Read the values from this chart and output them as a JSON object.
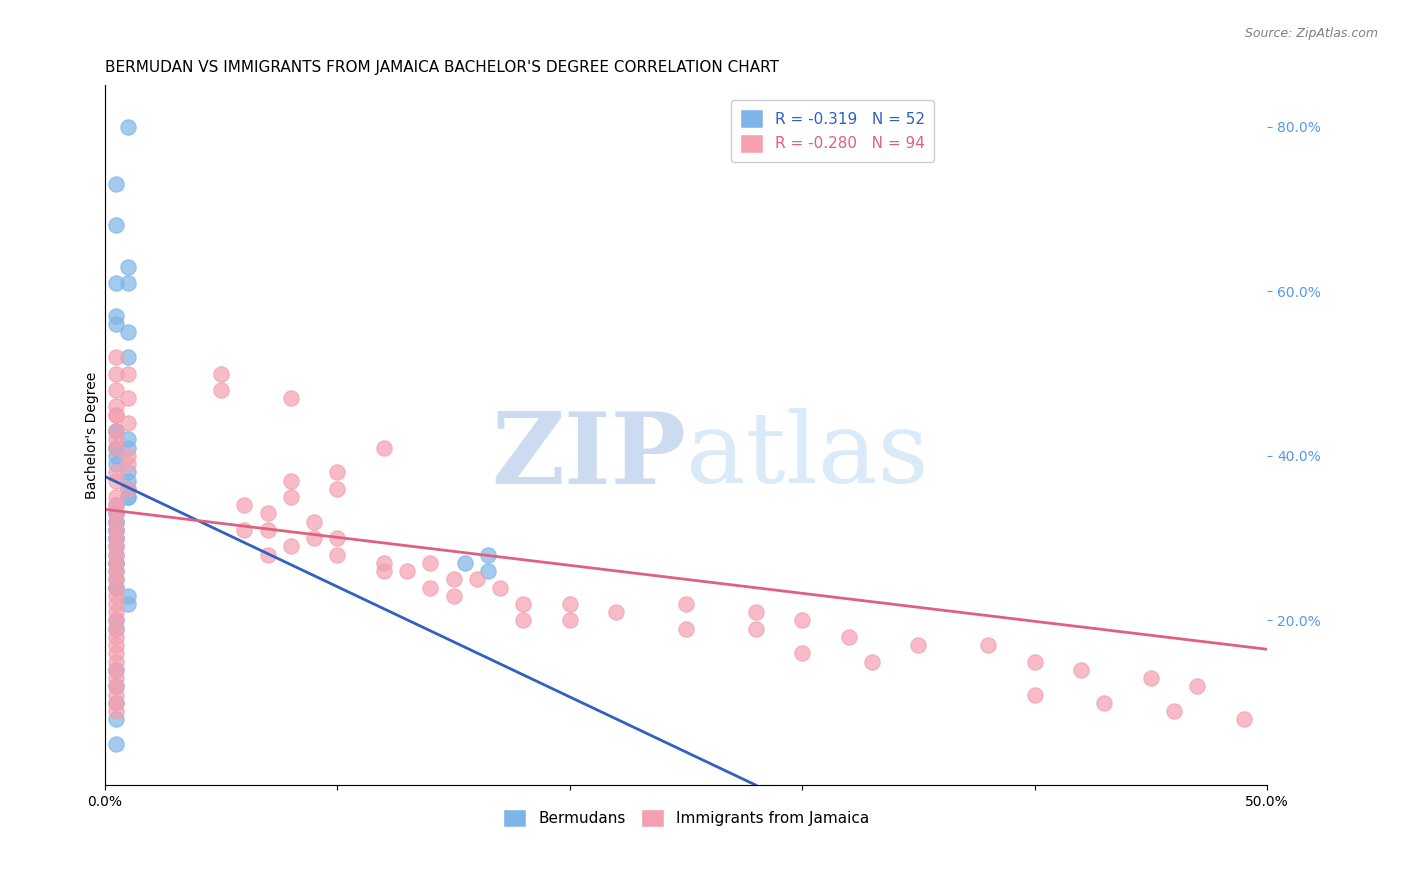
{
  "title": "BERMUDAN VS IMMIGRANTS FROM JAMAICA BACHELOR'S DEGREE CORRELATION CHART",
  "source": "Source: ZipAtlas.com",
  "xlabel_bottom": "",
  "ylabel_left": "Bachelor's Degree",
  "x_min": 0.0,
  "x_max": 0.5,
  "y_min": 0.0,
  "y_max": 0.85,
  "right_y_ticks": [
    0.2,
    0.4,
    0.6,
    0.8
  ],
  "right_y_labels": [
    "20.0%",
    "40.0%",
    "60.0%",
    "80.0%"
  ],
  "x_ticks": [
    0.0,
    0.1,
    0.2,
    0.3,
    0.4,
    0.5
  ],
  "x_labels": [
    "0.0%",
    "",
    "",
    "",
    "",
    "50.0%"
  ],
  "watermark": "ZIPatlas",
  "legend_r1": "R =  -0.319   N = 52",
  "legend_r2": "R =  -0.280   N = 94",
  "legend_label1": "Bermudans",
  "legend_label2": "Immigrants from Jamaica",
  "color_blue": "#7EB5E8",
  "color_pink": "#F4A0B0",
  "color_blue_line": "#3060C0",
  "color_pink_line": "#E06080",
  "scatter_blue_x": [
    0.01,
    0.005,
    0.005,
    0.01,
    0.005,
    0.01,
    0.005,
    0.005,
    0.01,
    0.01,
    0.005,
    0.005,
    0.01,
    0.01,
    0.005,
    0.005,
    0.005,
    0.005,
    0.01,
    0.01,
    0.01,
    0.01,
    0.01,
    0.005,
    0.005,
    0.005,
    0.005,
    0.005,
    0.005,
    0.005,
    0.005,
    0.005,
    0.005,
    0.005,
    0.005,
    0.005,
    0.005,
    0.005,
    0.005,
    0.005,
    0.01,
    0.01,
    0.005,
    0.005,
    0.005,
    0.005,
    0.005,
    0.165,
    0.155,
    0.165,
    0.005,
    0.005
  ],
  "scatter_blue_y": [
    0.8,
    0.73,
    0.68,
    0.63,
    0.61,
    0.61,
    0.57,
    0.56,
    0.55,
    0.52,
    0.43,
    0.43,
    0.42,
    0.41,
    0.41,
    0.41,
    0.4,
    0.39,
    0.38,
    0.37,
    0.36,
    0.35,
    0.35,
    0.34,
    0.33,
    0.33,
    0.32,
    0.32,
    0.31,
    0.31,
    0.3,
    0.3,
    0.29,
    0.28,
    0.27,
    0.27,
    0.26,
    0.25,
    0.24,
    0.24,
    0.23,
    0.22,
    0.2,
    0.19,
    0.14,
    0.12,
    0.1,
    0.28,
    0.27,
    0.26,
    0.08,
    0.05
  ],
  "scatter_pink_x": [
    0.005,
    0.005,
    0.01,
    0.005,
    0.01,
    0.005,
    0.005,
    0.01,
    0.005,
    0.005,
    0.05,
    0.05,
    0.08,
    0.12,
    0.1,
    0.08,
    0.1,
    0.08,
    0.06,
    0.07,
    0.09,
    0.06,
    0.07,
    0.09,
    0.1,
    0.08,
    0.07,
    0.1,
    0.12,
    0.14,
    0.12,
    0.13,
    0.15,
    0.16,
    0.14,
    0.17,
    0.15,
    0.18,
    0.2,
    0.22,
    0.18,
    0.2,
    0.25,
    0.28,
    0.3,
    0.25,
    0.28,
    0.32,
    0.35,
    0.38,
    0.3,
    0.33,
    0.4,
    0.42,
    0.45,
    0.47,
    0.4,
    0.43,
    0.46,
    0.49,
    0.005,
    0.01,
    0.01,
    0.005,
    0.005,
    0.01,
    0.005,
    0.005,
    0.005,
    0.005,
    0.005,
    0.005,
    0.005,
    0.005,
    0.005,
    0.005,
    0.005,
    0.005,
    0.005,
    0.005,
    0.005,
    0.005,
    0.005,
    0.005,
    0.005,
    0.005,
    0.005,
    0.005,
    0.005,
    0.005,
    0.005,
    0.005,
    0.005,
    0.005
  ],
  "scatter_pink_y": [
    0.52,
    0.5,
    0.5,
    0.48,
    0.47,
    0.46,
    0.45,
    0.44,
    0.43,
    0.42,
    0.5,
    0.48,
    0.47,
    0.41,
    0.38,
    0.37,
    0.36,
    0.35,
    0.34,
    0.33,
    0.32,
    0.31,
    0.31,
    0.3,
    0.3,
    0.29,
    0.28,
    0.28,
    0.27,
    0.27,
    0.26,
    0.26,
    0.25,
    0.25,
    0.24,
    0.24,
    0.23,
    0.22,
    0.22,
    0.21,
    0.2,
    0.2,
    0.22,
    0.21,
    0.2,
    0.19,
    0.19,
    0.18,
    0.17,
    0.17,
    0.16,
    0.15,
    0.15,
    0.14,
    0.13,
    0.12,
    0.11,
    0.1,
    0.09,
    0.08,
    0.41,
    0.4,
    0.39,
    0.38,
    0.37,
    0.36,
    0.35,
    0.34,
    0.33,
    0.32,
    0.31,
    0.3,
    0.29,
    0.28,
    0.27,
    0.26,
    0.25,
    0.24,
    0.23,
    0.22,
    0.21,
    0.2,
    0.19,
    0.18,
    0.17,
    0.16,
    0.15,
    0.14,
    0.13,
    0.12,
    0.11,
    0.1,
    0.09,
    0.45
  ],
  "blue_line_x": [
    0.0,
    0.28
  ],
  "blue_line_y": [
    0.375,
    0.0
  ],
  "pink_line_x": [
    0.0,
    0.5
  ],
  "pink_line_y": [
    0.335,
    0.165
  ],
  "grid_color": "#CCCCCC",
  "background_color": "#FFFFFF",
  "title_fontsize": 11,
  "axis_label_fontsize": 10,
  "tick_fontsize": 10,
  "right_tick_color": "#5599EE",
  "watermark_color_zip": "#C8D8F0",
  "watermark_color_atlas": "#D8E8F8"
}
